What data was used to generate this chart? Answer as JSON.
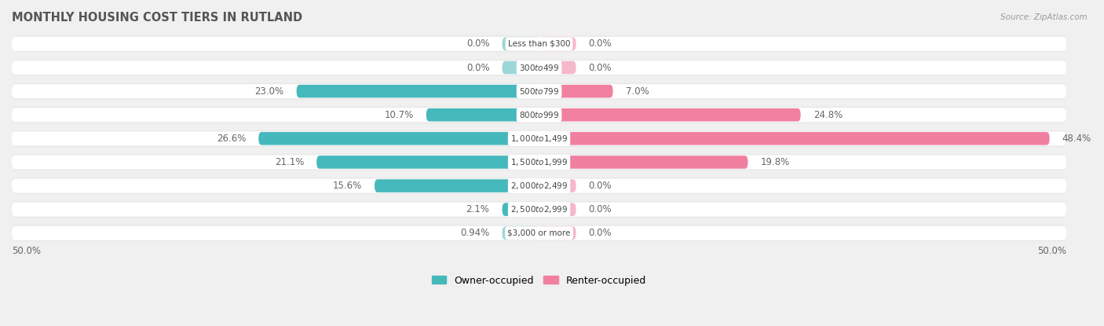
{
  "title": "MONTHLY HOUSING COST TIERS IN RUTLAND",
  "source": "Source: ZipAtlas.com",
  "categories": [
    "Less than $300",
    "$300 to $499",
    "$500 to $799",
    "$800 to $999",
    "$1,000 to $1,499",
    "$1,500 to $1,999",
    "$2,000 to $2,499",
    "$2,500 to $2,999",
    "$3,000 or more"
  ],
  "owner_values": [
    0.0,
    0.0,
    23.0,
    10.7,
    26.6,
    21.1,
    15.6,
    2.1,
    0.94
  ],
  "renter_values": [
    0.0,
    0.0,
    7.0,
    24.8,
    48.4,
    19.8,
    0.0,
    0.0,
    0.0
  ],
  "owner_color": "#45b8bc",
  "renter_color": "#f07fa0",
  "owner_color_light": "#9dd6d8",
  "renter_color_light": "#f5b8c8",
  "axis_max": 50.0,
  "bg_color": "#f0f0f0",
  "row_bg_color": "#ffffff",
  "title_color": "#555555",
  "source_color": "#999999",
  "label_color": "#666666"
}
